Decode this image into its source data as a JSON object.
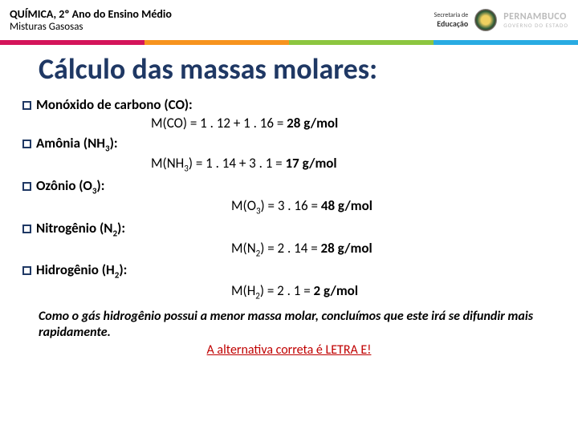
{
  "header": {
    "title": "QUÍMICA, 2º Ano do Ensino Médio",
    "subtitle": "Misturas Gasosas",
    "secretaria_l1": "Secretaria de",
    "secretaria_l2": "Educação",
    "gov_l1": "PERNAMBUCO",
    "gov_l2": "GOVERNO DO ESTADO"
  },
  "title": "Cálculo das massas molares:",
  "items": {
    "co": {
      "label": "Monóxido de carbono (CO):",
      "pre": "M(CO) = 1 . 12 + 1 . 16 = ",
      "res": "28 g/mol"
    },
    "nh3": {
      "label_a": "Amônia (NH",
      "label_b": "):",
      "pre_a": "M(NH",
      "pre_b": ") = 1 . 14 + 3 . 1 = ",
      "res": "17 g/mol"
    },
    "o3": {
      "label_a": "Ozônio (O",
      "label_b": "):",
      "pre_a": "M(O",
      "pre_b": ") = 3 . 16 = ",
      "res": "48 g/mol"
    },
    "n2": {
      "label_a": "Nitrogênio (N",
      "label_b": "):",
      "pre_a": "M(N",
      "pre_b": ") = 2 . 14 = ",
      "res": "28 g/mol"
    },
    "h2": {
      "label_a": "Hidrogênio (H",
      "label_b": "):",
      "pre_a": "M(H",
      "pre_b": ") = 2 . 1 = ",
      "res": "2 g/mol"
    }
  },
  "conclusion": "Como o gás hidrogênio possui a menor massa molar, concluímos que este irá se difundir mais rapidamente.",
  "answer": "A alternativa correta é LETRA E!",
  "colors": {
    "title_color": "#1f3864",
    "answer_color": "#c00000"
  }
}
